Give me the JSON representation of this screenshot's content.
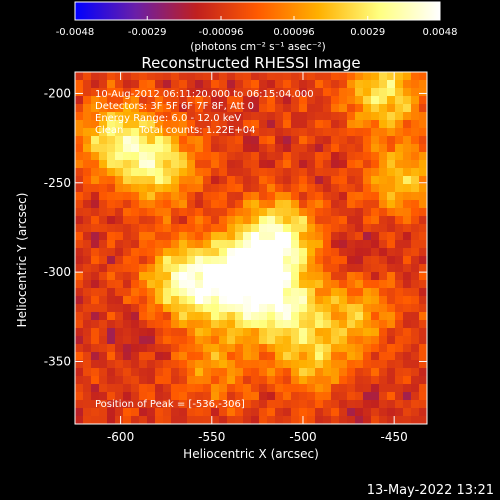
{
  "colorbar": {
    "tick_values": [
      -0.0048,
      -0.0029,
      -0.00096,
      0.00096,
      0.0029,
      0.0048
    ],
    "tick_labels": [
      "-0.0048",
      "-0.0029",
      "-0.00096",
      "0.00096",
      "0.0029",
      "0.0048"
    ],
    "units_label": "(photons cm⁻² s⁻¹ asec⁻²)",
    "stops": [
      "#0000ff",
      "#6a1fa8",
      "#c0201f",
      "#ff5a00",
      "#ffb000",
      "#ffff80",
      "#ffffff"
    ]
  },
  "chart_data": {
    "type": "heatmap",
    "title": "Reconstructed RHESSI Image",
    "xlabel": "Heliocentric X (arcsec)",
    "ylabel": "Heliocentric Y (arcsec)",
    "xlim": [
      -625,
      -432
    ],
    "ylim": [
      -385,
      -188
    ],
    "x_ticks": [
      -600,
      -550,
      -500,
      -450
    ],
    "x_tick_labels": [
      "-600",
      "-550",
      "-500",
      "-450"
    ],
    "y_ticks": [
      -200,
      -250,
      -300,
      -350
    ],
    "y_tick_labels": [
      "-200",
      "-250",
      "-300",
      "-350"
    ],
    "value_range": [
      -0.0048,
      0.0048
    ],
    "grid": false,
    "annotations": [
      "10-Aug-2012 06:11:20.000 to 06:15:04.000",
      "Detectors: 3F 5F 6F 7F 8F, Att 0",
      "Energy Range: 6.0 - 12.0 keV",
      "Clean     Total counts: 1.22E+04"
    ],
    "peak_label": "Position of Peak = [-536,-306]",
    "peak_position": [
      -536,
      -306
    ],
    "sources": [
      {
        "x": -536,
        "y": -306,
        "value": 0.0048
      },
      {
        "x": -515,
        "y": -282,
        "value": 0.0045
      },
      {
        "x": -565,
        "y": -305,
        "value": 0.0034
      },
      {
        "x": -510,
        "y": -320,
        "value": 0.003
      },
      {
        "x": -580,
        "y": -240,
        "value": 0.0028
      },
      {
        "x": -603,
        "y": -225,
        "value": 0.0024
      },
      {
        "x": -455,
        "y": -200,
        "value": 0.0027
      },
      {
        "x": -445,
        "y": -248,
        "value": 0.0018
      },
      {
        "x": -492,
        "y": -350,
        "value": 0.0016
      },
      {
        "x": -470,
        "y": -322,
        "value": 0.0014
      },
      {
        "x": -548,
        "y": -350,
        "value": 0.0011
      },
      {
        "x": -590,
        "y": -335,
        "value": -0.0012
      },
      {
        "x": -470,
        "y": -290,
        "value": -0.0015
      },
      {
        "x": -470,
        "y": -370,
        "value": -0.0014
      }
    ]
  },
  "footer": {
    "date": "13-May-2022 13:21"
  }
}
